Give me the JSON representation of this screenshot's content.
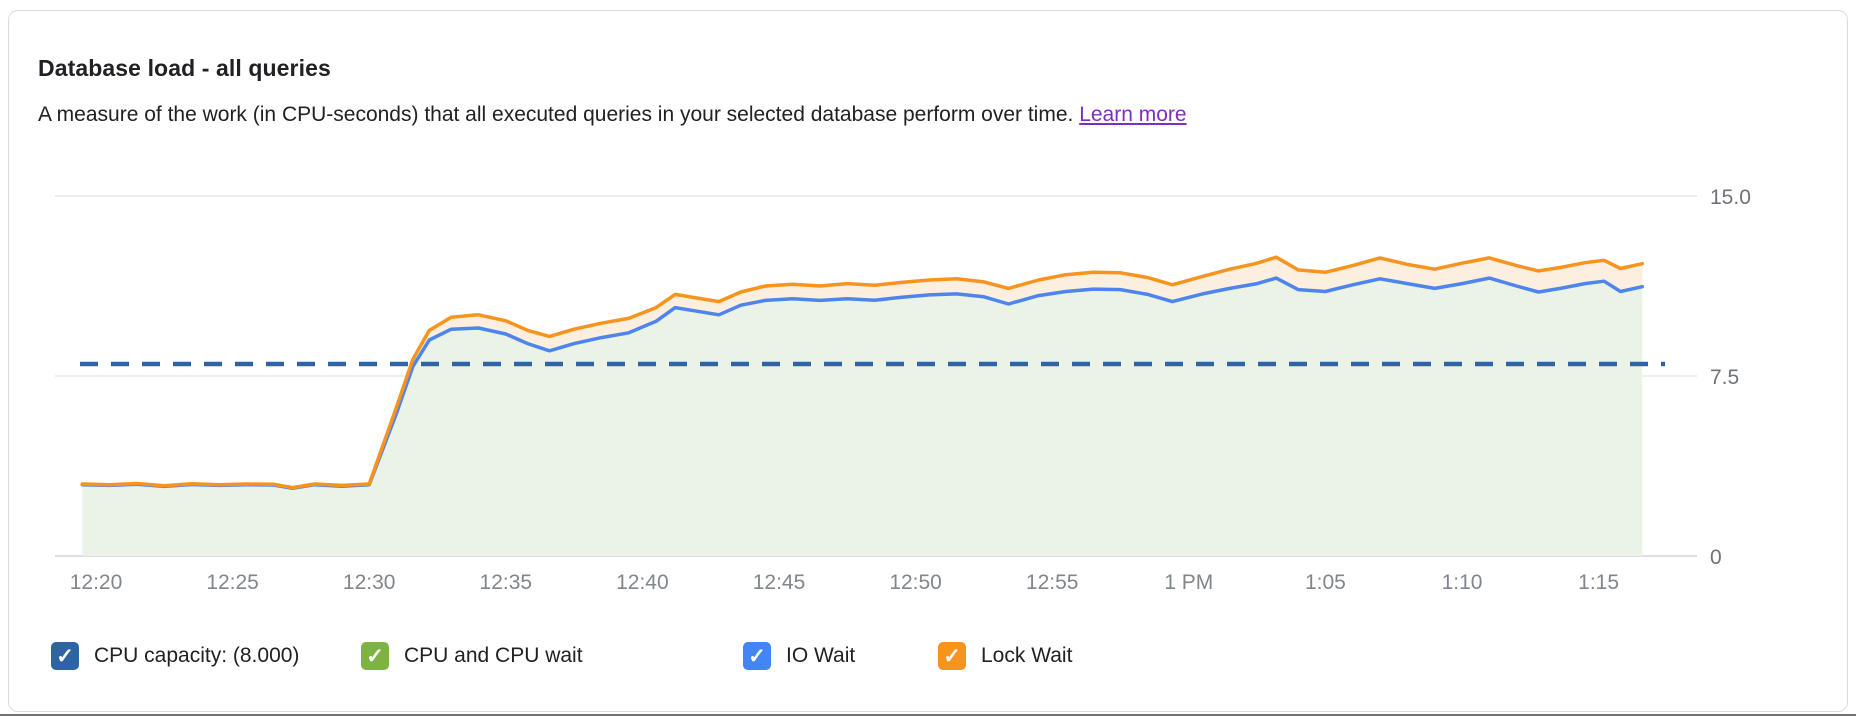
{
  "card": {
    "title": "Database load - all queries",
    "subtitle": "A measure of the work (in CPU-seconds) that all executed queries in your selected database perform over time.",
    "learn_more_label": "Learn more"
  },
  "chart_data": {
    "type": "area",
    "stacked": true,
    "title": "Database load - all queries",
    "ylabel": "",
    "xlabel": "",
    "ylim": [
      0,
      15.75
    ],
    "grid": "horizontal",
    "legend_position": "bottom",
    "y_ticks": [
      0,
      7.5,
      15
    ],
    "y_tick_labels": [
      "0",
      "7.5",
      "15.0"
    ],
    "x_tick_minutes": [
      80,
      85,
      90,
      95,
      100,
      105,
      110,
      115,
      120,
      125,
      130,
      135
    ],
    "x_tick_labels": [
      "12:20",
      "12:25",
      "12:30",
      "12:35",
      "12:40",
      "12:45",
      "12:50",
      "12:55",
      "1 PM",
      "1:05",
      "1:10",
      "1:15"
    ],
    "capacity_line": {
      "label": "CPU capacity: (8.000)",
      "value": 8.0,
      "color": "#2e63a4",
      "style": "dashed"
    },
    "t_minutes": [
      79.5,
      80.5,
      81.5,
      82.5,
      83.5,
      84.5,
      85.5,
      86.5,
      87.2,
      88,
      89,
      90,
      91,
      91.6,
      92.2,
      93,
      94,
      95,
      95.8,
      96.6,
      97.5,
      98.5,
      99.5,
      100.5,
      101.2,
      102,
      102.8,
      103.6,
      104.5,
      105.5,
      106.5,
      107.5,
      108.5,
      109.5,
      110.5,
      111.5,
      112.5,
      113.4,
      114.5,
      115.5,
      116.5,
      117.5,
      118.5,
      119.4,
      120.5,
      121.5,
      122.5,
      123.2,
      124,
      125,
      126,
      127,
      128,
      129,
      130,
      131,
      132,
      132.8,
      133.6,
      134.5,
      135.2,
      135.8,
      136.6
    ],
    "series": [
      {
        "name": "IO Wait",
        "line_color": "#4d85ec",
        "area_fill": "#eaf1e5",
        "values": [
          2.97,
          2.94,
          2.99,
          2.9,
          2.98,
          2.94,
          2.97,
          2.96,
          2.82,
          2.97,
          2.91,
          2.97,
          5.95,
          7.9,
          9.0,
          9.45,
          9.5,
          9.25,
          8.85,
          8.55,
          8.85,
          9.1,
          9.3,
          9.78,
          10.35,
          10.2,
          10.05,
          10.45,
          10.65,
          10.72,
          10.65,
          10.72,
          10.66,
          10.78,
          10.88,
          10.92,
          10.8,
          10.5,
          10.85,
          11.02,
          11.12,
          11.1,
          10.9,
          10.6,
          10.92,
          11.15,
          11.35,
          11.58,
          11.1,
          11.02,
          11.3,
          11.55,
          11.35,
          11.15,
          11.35,
          11.58,
          11.25,
          11.0,
          11.15,
          11.35,
          11.45,
          11.02,
          11.22
        ]
      },
      {
        "name": "Lock Wait",
        "line_color": "#f7941e",
        "area_fill": "#fdeedd",
        "values": [
          3.0,
          2.97,
          3.02,
          2.93,
          3.01,
          2.97,
          3.0,
          2.99,
          2.85,
          3.0,
          2.94,
          3.0,
          6.2,
          8.2,
          9.4,
          9.95,
          10.05,
          9.8,
          9.4,
          9.15,
          9.45,
          9.7,
          9.9,
          10.35,
          10.9,
          10.75,
          10.6,
          11.0,
          11.25,
          11.32,
          11.25,
          11.35,
          11.28,
          11.4,
          11.5,
          11.55,
          11.42,
          11.15,
          11.5,
          11.72,
          11.82,
          11.8,
          11.6,
          11.3,
          11.65,
          11.95,
          12.2,
          12.45,
          11.92,
          11.82,
          12.1,
          12.42,
          12.15,
          11.95,
          12.2,
          12.42,
          12.1,
          11.88,
          12.02,
          12.22,
          12.32,
          11.98,
          12.18
        ]
      }
    ]
  },
  "legend": {
    "items": [
      {
        "label": "CPU capacity: (8.000)",
        "color": "#2e63a4",
        "checked": true
      },
      {
        "label": "CPU and CPU wait",
        "color": "#7cb342",
        "checked": true
      },
      {
        "label": "IO Wait",
        "color": "#4285f4",
        "checked": true
      },
      {
        "label": "Lock Wait",
        "color": "#f7941e",
        "checked": true
      }
    ]
  },
  "icons": {
    "checkmark": "✓"
  },
  "colors": {
    "grid_line": "#ecedf0",
    "axis_line": "#dcdee2",
    "tick_label": "#81868c",
    "link_purple": "#7b2fbf",
    "card_border": "#dadce0"
  }
}
